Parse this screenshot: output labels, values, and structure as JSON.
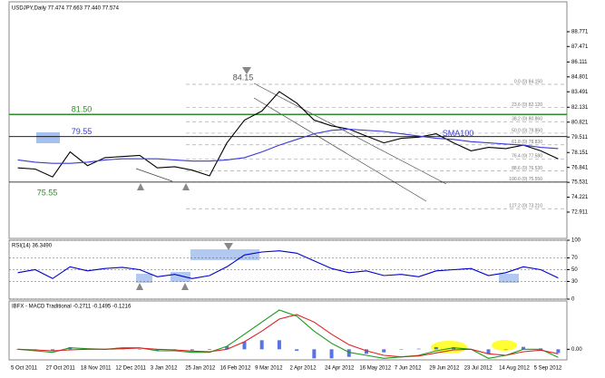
{
  "chart_data": [
    {
      "type": "line",
      "title": "USDJPY,Daily  77.474 77.663 77.440 77.574",
      "categories": [
        "5 Oct 2011",
        null,
        "27 Oct 2011",
        null,
        "18 Nov 2011",
        null,
        "12 Dec 2011",
        null,
        "3 Jan 2012",
        null,
        "25 Jan 2012",
        null,
        "16 Feb 2012",
        null,
        "9 Mar 2012",
        null,
        "2 Apr 2012",
        null,
        "24 Apr 2012",
        null,
        "16 May 2012",
        null,
        "7 Jun 2012",
        null,
        "29 Jun 2012",
        null,
        "23 Jul 2012",
        null,
        "14 Aug 2012",
        null,
        "5 Sep 2012",
        null
      ],
      "series": [
        {
          "color": "#000000",
          "values": [
            76.8,
            76.7,
            76.0,
            78.2,
            77.0,
            77.7,
            77.8,
            77.9,
            76.8,
            76.9,
            76.6,
            76.1,
            79.0,
            81.0,
            81.8,
            83.5,
            82.5,
            81.0,
            80.5,
            80.2,
            79.6,
            79.0,
            79.4,
            79.5,
            79.8,
            79.0,
            78.3,
            78.6,
            78.5,
            78.8,
            78.3,
            77.6
          ]
        },
        {
          "name": "SMA100",
          "color": "#3a3ad6",
          "values": [
            77.5,
            77.3,
            77.2,
            77.2,
            77.3,
            77.5,
            77.6,
            77.6,
            77.6,
            77.5,
            77.4,
            77.4,
            77.5,
            77.7,
            78.2,
            78.8,
            79.3,
            79.8,
            80.1,
            80.2,
            80.1,
            80.0,
            79.8,
            79.6,
            79.4,
            79.3,
            79.1,
            79.0,
            78.9,
            78.8,
            78.6,
            78.5
          ]
        }
      ],
      "levels": [
        {
          "value": 81.5,
          "label": "81.50",
          "color": "#2e8b2e"
        },
        {
          "value": 79.55,
          "label": "79.55",
          "color": "#000000"
        },
        {
          "value": 75.55,
          "label": "75.55",
          "color": "#000000"
        }
      ],
      "high": {
        "value": 84.15,
        "label": "84.15"
      },
      "fibs": [
        {
          "value": 84.15,
          "label": "0.0 (0) 84.150"
        },
        {
          "value": 82.12,
          "label": "23.6 (0) 82.120"
        },
        {
          "value": 80.86,
          "label": "38.2 (0) 80.860"
        },
        {
          "value": 79.85,
          "label": "50.0 (0) 79.850"
        },
        {
          "value": 78.83,
          "label": "61.8 (0) 78.830"
        },
        {
          "value": 77.58,
          "label": "76.4 (0) 77.580"
        },
        {
          "value": 76.53,
          "label": "88.6 (0) 76.530"
        },
        {
          "value": 75.55,
          "label": "100.0 (0) 75.550"
        },
        {
          "value": 73.21,
          "label": "127.2 (0) 73.210"
        }
      ],
      "ylim": [
        70.6,
        91.4
      ],
      "yticks": [
        88.771,
        87.471,
        86.111,
        84.801,
        83.491,
        82.131,
        80.821,
        79.511,
        78.151,
        76.841,
        75.531,
        74.221,
        72.911
      ]
    },
    {
      "type": "line",
      "title": "RSI(14) 36.3490",
      "series": [
        {
          "color": "#0000cc",
          "values": [
            45,
            50,
            35,
            55,
            48,
            52,
            54,
            50,
            38,
            42,
            35,
            40,
            55,
            75,
            80,
            82,
            78,
            65,
            52,
            45,
            48,
            40,
            42,
            38,
            48,
            50,
            52,
            40,
            45,
            55,
            50,
            36
          ]
        }
      ],
      "ylim": [
        0,
        100
      ],
      "yticks": [
        100,
        70,
        50,
        30,
        0
      ]
    },
    {
      "type": "line",
      "title": "IBFX - MACD Traditional -0.2711 -0.1495 -0.1216",
      "series": [
        {
          "color": "#1a9a1a",
          "values": [
            0,
            -0.05,
            -0.1,
            0.05,
            0.02,
            0,
            0.05,
            0.05,
            -0.05,
            -0.05,
            -0.1,
            -0.1,
            0.1,
            0.5,
            0.9,
            1.3,
            1.1,
            0.6,
            0.2,
            -0.1,
            -0.2,
            -0.3,
            -0.25,
            -0.2,
            -0.05,
            0.05,
            0,
            -0.3,
            -0.2,
            0,
            0,
            -0.27
          ]
        },
        {
          "color": "#dd2222",
          "values": [
            0,
            -0.02,
            -0.05,
            -0.02,
            0,
            0,
            0.02,
            0.04,
            0,
            -0.02,
            -0.06,
            -0.08,
            0,
            0.25,
            0.6,
            1.0,
            1.15,
            0.9,
            0.5,
            0.15,
            -0.05,
            -0.2,
            -0.25,
            -0.22,
            -0.12,
            -0.02,
            0,
            -0.15,
            -0.2,
            -0.08,
            -0.03,
            -0.15
          ]
        }
      ],
      "histogram": {
        "color": "#3050e0",
        "values": [
          0,
          -0.03,
          -0.05,
          0.07,
          0.02,
          0,
          0.03,
          0.01,
          -0.05,
          -0.03,
          -0.04,
          -0.02,
          0.1,
          0.25,
          0.3,
          0.3,
          -0.05,
          -0.3,
          -0.3,
          -0.25,
          -0.15,
          -0.1,
          0,
          0.02,
          0.07,
          0.07,
          0,
          -0.15,
          0,
          0.08,
          0.03,
          -0.12
        ]
      },
      "ylim": [
        -0.35,
        1.6
      ],
      "yticks": [
        {
          "value": 0,
          "label": "0.00"
        }
      ]
    }
  ]
}
